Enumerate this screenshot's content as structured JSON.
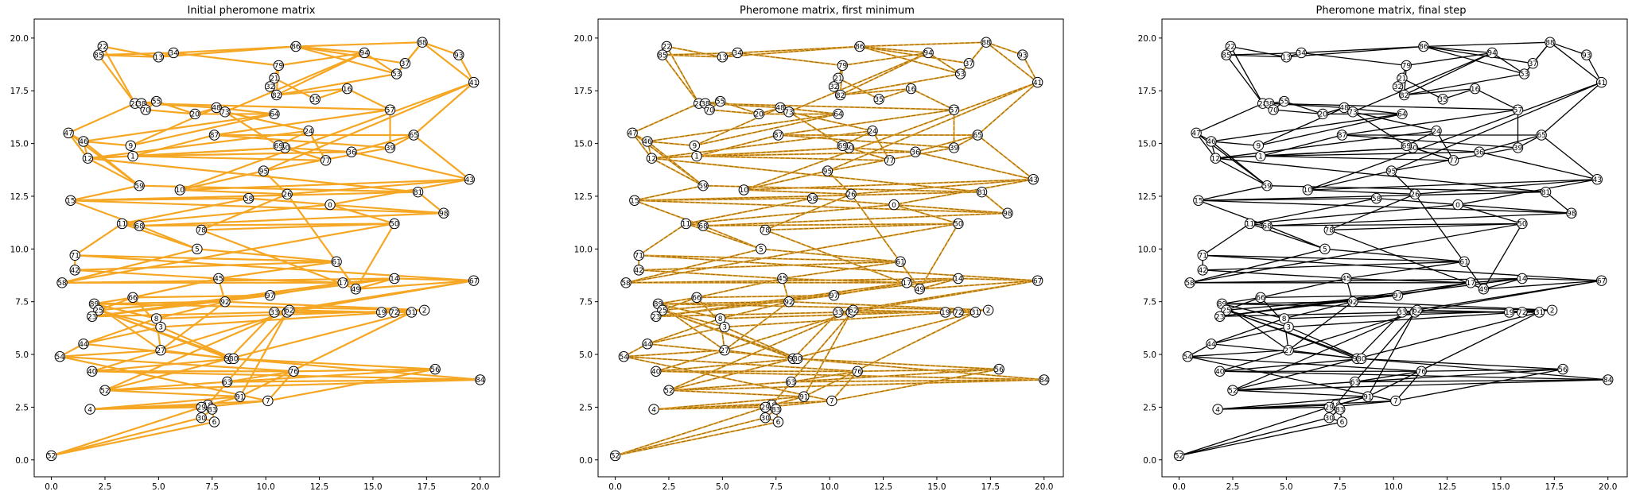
{
  "figure": {
    "panels": [
      {
        "title": "Initial pheromone matrix"
      },
      {
        "title": "Pheromone matrix, first minimum"
      },
      {
        "title": "Pheromone matrix, final step"
      }
    ]
  },
  "chart_data": [
    {
      "type": "network",
      "title": "Initial pheromone matrix",
      "edge_style": "uniform",
      "edge_color": "#f5a623",
      "xlim": [
        -0.8,
        20.9
      ],
      "ylim": [
        -0.8,
        20.9
      ],
      "xticks": [
        "0.0",
        "2.5",
        "5.0",
        "7.5",
        "10.0",
        "12.5",
        "15.0",
        "17.5",
        "20.0"
      ],
      "yticks": [
        "0.0",
        "2.5",
        "5.0",
        "7.5",
        "10.0",
        "12.5",
        "15.0",
        "17.5",
        "20.0"
      ],
      "grid": false
    },
    {
      "type": "network",
      "title": "Pheromone matrix, first minimum",
      "edge_style": "mixed",
      "edge_color": "#8a6a1c",
      "xlim": [
        -0.8,
        20.9
      ],
      "ylim": [
        -0.8,
        20.9
      ],
      "xticks": [
        "0.0",
        "2.5",
        "5.0",
        "7.5",
        "10.0",
        "12.5",
        "15.0",
        "17.5",
        "20.0"
      ],
      "yticks": [
        "0.0",
        "2.5",
        "5.0",
        "7.5",
        "10.0",
        "12.5",
        "15.0",
        "17.5",
        "20.0"
      ],
      "grid": false
    },
    {
      "type": "network",
      "title": "Pheromone matrix, final step",
      "edge_style": "black-with-highlights",
      "edge_color": "#000000",
      "highlight_color": "#f5a623",
      "highlight_edges": [
        [
          1,
          10
        ],
        [
          10,
          78
        ],
        [
          5,
          16
        ],
        [
          16,
          27
        ],
        [
          5,
          45
        ]
      ],
      "xlim": [
        -0.8,
        20.9
      ],
      "ylim": [
        -0.8,
        20.9
      ],
      "xticks": [
        "0.0",
        "2.5",
        "5.0",
        "7.5",
        "10.0",
        "12.5",
        "15.0",
        "17.5",
        "20.0"
      ],
      "yticks": [
        "0.0",
        "2.5",
        "5.0",
        "7.5",
        "10.0",
        "12.5",
        "15.0",
        "17.5",
        "20.0"
      ],
      "grid": false
    }
  ],
  "nodes": [
    {
      "id": 22,
      "x": 2.4,
      "y": 19.6
    },
    {
      "id": 85,
      "x": 2.2,
      "y": 19.2
    },
    {
      "id": 13,
      "x": 5.0,
      "y": 19.1
    },
    {
      "id": 34,
      "x": 5.7,
      "y": 19.3
    },
    {
      "id": 86,
      "x": 11.4,
      "y": 19.6
    },
    {
      "id": 79,
      "x": 10.6,
      "y": 18.7
    },
    {
      "id": 94,
      "x": 14.6,
      "y": 19.3
    },
    {
      "id": 37,
      "x": 16.5,
      "y": 18.8
    },
    {
      "id": 88,
      "x": 17.3,
      "y": 19.8
    },
    {
      "id": 93,
      "x": 19.0,
      "y": 19.2
    },
    {
      "id": 41,
      "x": 19.7,
      "y": 17.9
    },
    {
      "id": 53,
      "x": 16.1,
      "y": 18.3
    },
    {
      "id": 21,
      "x": 10.4,
      "y": 18.1
    },
    {
      "id": 32,
      "x": 10.2,
      "y": 17.7
    },
    {
      "id": 82,
      "x": 10.5,
      "y": 17.3
    },
    {
      "id": 35,
      "x": 12.3,
      "y": 17.1
    },
    {
      "id": 16,
      "x": 13.8,
      "y": 17.6
    },
    {
      "id": 57,
      "x": 15.8,
      "y": 16.6
    },
    {
      "id": 28,
      "x": 3.9,
      "y": 16.9
    },
    {
      "id": 38,
      "x": 4.2,
      "y": 16.9
    },
    {
      "id": 55,
      "x": 4.9,
      "y": 17.0
    },
    {
      "id": 70,
      "x": 4.4,
      "y": 16.6
    },
    {
      "id": 20,
      "x": 6.7,
      "y": 16.4
    },
    {
      "id": 48,
      "x": 7.7,
      "y": 16.7
    },
    {
      "id": 73,
      "x": 8.1,
      "y": 16.5
    },
    {
      "id": 64,
      "x": 10.4,
      "y": 16.4
    },
    {
      "id": 47,
      "x": 0.8,
      "y": 15.5
    },
    {
      "id": 46,
      "x": 1.5,
      "y": 15.1
    },
    {
      "id": 9,
      "x": 3.7,
      "y": 14.9
    },
    {
      "id": 87,
      "x": 7.6,
      "y": 15.4
    },
    {
      "id": 24,
      "x": 12.0,
      "y": 15.6
    },
    {
      "id": 65,
      "x": 16.9,
      "y": 15.4
    },
    {
      "id": 36,
      "x": 14.0,
      "y": 14.6
    },
    {
      "id": 39,
      "x": 15.8,
      "y": 14.8
    },
    {
      "id": 60,
      "x": 10.9,
      "y": 14.8
    },
    {
      "id": 69,
      "x": 10.6,
      "y": 14.9
    },
    {
      "id": 12,
      "x": 1.7,
      "y": 14.3
    },
    {
      "id": 1,
      "x": 3.8,
      "y": 14.4
    },
    {
      "id": 77,
      "x": 12.8,
      "y": 14.2
    },
    {
      "id": 95,
      "x": 9.9,
      "y": 13.7
    },
    {
      "id": 43,
      "x": 19.5,
      "y": 13.3
    },
    {
      "id": 59,
      "x": 4.1,
      "y": 13.0
    },
    {
      "id": 10,
      "x": 6.0,
      "y": 12.8
    },
    {
      "id": 26,
      "x": 11.0,
      "y": 12.6
    },
    {
      "id": 81,
      "x": 17.1,
      "y": 12.7
    },
    {
      "id": 15,
      "x": 0.9,
      "y": 12.3
    },
    {
      "id": 58,
      "x": 9.2,
      "y": 12.4
    },
    {
      "id": 0,
      "x": 13.0,
      "y": 12.1
    },
    {
      "id": 98,
      "x": 18.3,
      "y": 11.7
    },
    {
      "id": 11,
      "x": 3.3,
      "y": 11.2
    },
    {
      "id": 68,
      "x": 4.1,
      "y": 11.1
    },
    {
      "id": 50,
      "x": 16.0,
      "y": 11.2
    },
    {
      "id": 78,
      "x": 7.0,
      "y": 10.9
    },
    {
      "id": 5,
      "x": 6.8,
      "y": 10.0
    },
    {
      "id": 71,
      "x": 1.1,
      "y": 9.7
    },
    {
      "id": 61,
      "x": 13.3,
      "y": 9.4
    },
    {
      "id": 42,
      "x": 1.1,
      "y": 9.0
    },
    {
      "id": 58,
      "x": 0.5,
      "y": 8.4
    },
    {
      "id": 45,
      "x": 7.8,
      "y": 8.6
    },
    {
      "id": 17,
      "x": 13.6,
      "y": 8.4
    },
    {
      "id": 49,
      "x": 14.2,
      "y": 8.1
    },
    {
      "id": 14,
      "x": 16.0,
      "y": 8.6
    },
    {
      "id": 67,
      "x": 19.7,
      "y": 8.5
    },
    {
      "id": 66,
      "x": 3.8,
      "y": 7.7
    },
    {
      "id": 97,
      "x": 10.2,
      "y": 7.8
    },
    {
      "id": 92,
      "x": 8.1,
      "y": 7.5
    },
    {
      "id": 89,
      "x": 2.0,
      "y": 7.4
    },
    {
      "id": 25,
      "x": 2.2,
      "y": 7.1
    },
    {
      "id": 23,
      "x": 1.9,
      "y": 6.8
    },
    {
      "id": 33,
      "x": 10.4,
      "y": 7.0
    },
    {
      "id": 74,
      "x": 11.0,
      "y": 7.0
    },
    {
      "id": 62,
      "x": 11.1,
      "y": 7.1
    },
    {
      "id": 19,
      "x": 15.4,
      "y": 7.0
    },
    {
      "id": 72,
      "x": 16.0,
      "y": 7.0
    },
    {
      "id": 31,
      "x": 16.8,
      "y": 7.0
    },
    {
      "id": 2,
      "x": 17.4,
      "y": 7.1
    },
    {
      "id": 8,
      "x": 4.9,
      "y": 6.7
    },
    {
      "id": 3,
      "x": 5.1,
      "y": 6.3
    },
    {
      "id": 44,
      "x": 1.5,
      "y": 5.5
    },
    {
      "id": 54,
      "x": 0.4,
      "y": 4.9
    },
    {
      "id": 27,
      "x": 5.1,
      "y": 5.2
    },
    {
      "id": 96,
      "x": 8.3,
      "y": 4.8
    },
    {
      "id": 80,
      "x": 8.5,
      "y": 4.8
    },
    {
      "id": 40,
      "x": 1.9,
      "y": 4.2
    },
    {
      "id": 76,
      "x": 11.3,
      "y": 4.2
    },
    {
      "id": 56,
      "x": 17.9,
      "y": 4.3
    },
    {
      "id": 84,
      "x": 20.0,
      "y": 3.8
    },
    {
      "id": 63,
      "x": 8.2,
      "y": 3.7
    },
    {
      "id": 52,
      "x": 2.5,
      "y": 3.3
    },
    {
      "id": 91,
      "x": 8.8,
      "y": 3.0
    },
    {
      "id": 7,
      "x": 10.1,
      "y": 2.8
    },
    {
      "id": 4,
      "x": 1.8,
      "y": 2.4
    },
    {
      "id": 18,
      "x": 7.3,
      "y": 2.6
    },
    {
      "id": 29,
      "x": 7.0,
      "y": 2.5
    },
    {
      "id": 83,
      "x": 7.5,
      "y": 2.4
    },
    {
      "id": 30,
      "x": 7.0,
      "y": 2.0
    },
    {
      "id": 6,
      "x": 7.6,
      "y": 1.8
    },
    {
      "id": 52,
      "x": 0.0,
      "y": 0.2
    }
  ],
  "edges": [
    [
      0,
      1
    ],
    [
      0,
      2
    ],
    [
      1,
      2
    ],
    [
      1,
      3
    ],
    [
      2,
      3
    ],
    [
      2,
      4
    ],
    [
      3,
      4
    ],
    [
      4,
      7
    ],
    [
      4,
      8
    ],
    [
      7,
      8
    ],
    [
      8,
      9
    ],
    [
      9,
      10
    ],
    [
      8,
      10
    ],
    [
      7,
      11
    ],
    [
      8,
      11
    ],
    [
      4,
      11
    ],
    [
      5,
      6
    ],
    [
      4,
      6
    ],
    [
      6,
      11
    ],
    [
      11,
      14
    ],
    [
      6,
      14
    ],
    [
      5,
      14
    ],
    [
      3,
      5
    ],
    [
      5,
      12
    ],
    [
      12,
      13
    ],
    [
      13,
      14
    ],
    [
      12,
      15
    ],
    [
      15,
      16
    ],
    [
      14,
      16
    ],
    [
      16,
      17
    ],
    [
      17,
      29
    ],
    [
      17,
      19
    ],
    [
      17,
      33
    ],
    [
      19,
      23
    ],
    [
      19,
      20
    ],
    [
      20,
      21
    ],
    [
      18,
      21
    ],
    [
      18,
      19
    ],
    [
      1,
      18
    ],
    [
      0,
      18
    ],
    [
      18,
      26
    ],
    [
      19,
      21
    ],
    [
      21,
      22
    ],
    [
      20,
      22
    ],
    [
      22,
      23
    ],
    [
      23,
      25
    ],
    [
      23,
      24
    ],
    [
      6,
      24
    ],
    [
      24,
      30
    ],
    [
      24,
      35
    ],
    [
      30,
      35
    ],
    [
      35,
      38
    ],
    [
      30,
      38
    ],
    [
      30,
      36
    ],
    [
      34,
      36
    ],
    [
      34,
      37
    ],
    [
      37,
      38
    ],
    [
      34,
      38
    ],
    [
      32,
      34
    ],
    [
      32,
      37
    ],
    [
      31,
      32
    ],
    [
      31,
      33
    ],
    [
      33,
      39
    ],
    [
      10,
      31
    ],
    [
      10,
      39
    ],
    [
      10,
      42
    ],
    [
      39,
      42
    ],
    [
      31,
      40
    ],
    [
      32,
      40
    ],
    [
      29,
      31
    ],
    [
      29,
      33
    ],
    [
      29,
      37
    ],
    [
      28,
      37
    ],
    [
      36,
      37
    ],
    [
      26,
      27
    ],
    [
      26,
      36
    ],
    [
      27,
      36
    ],
    [
      27,
      28
    ],
    [
      25,
      27
    ],
    [
      25,
      28
    ],
    [
      22,
      25
    ],
    [
      23,
      28
    ],
    [
      26,
      41
    ],
    [
      27,
      41
    ],
    [
      36,
      41
    ],
    [
      36,
      44
    ],
    [
      41,
      44
    ],
    [
      41,
      45
    ],
    [
      44,
      45
    ],
    [
      44,
      48
    ],
    [
      45,
      48
    ],
    [
      45,
      46
    ],
    [
      46,
      47
    ],
    [
      47,
      48
    ],
    [
      45,
      50
    ],
    [
      48,
      50
    ],
    [
      46,
      49
    ],
    [
      47,
      49
    ],
    [
      49,
      50
    ],
    [
      50,
      53
    ],
    [
      49,
      53
    ],
    [
      49,
      54
    ],
    [
      54,
      55
    ],
    [
      53,
      55
    ],
    [
      53,
      57
    ],
    [
      55,
      56
    ],
    [
      54,
      56
    ],
    [
      56,
      58
    ],
    [
      55,
      58
    ],
    [
      58,
      59
    ],
    [
      57,
      59
    ],
    [
      50,
      51
    ],
    [
      51,
      57
    ],
    [
      51,
      52
    ],
    [
      43,
      52
    ],
    [
      42,
      43
    ],
    [
      39,
      43
    ],
    [
      40,
      43
    ],
    [
      40,
      47
    ],
    [
      42,
      40
    ],
    [
      47,
      51
    ],
    [
      52,
      60
    ],
    [
      43,
      60
    ],
    [
      51,
      60
    ],
    [
      57,
      61
    ],
    [
      60,
      61
    ],
    [
      59,
      61
    ],
    [
      61,
      62
    ],
    [
      60,
      62
    ],
    [
      62,
      69
    ],
    [
      61,
      68
    ],
    [
      68,
      69
    ],
    [
      59,
      68
    ],
    [
      59,
      64
    ],
    [
      64,
      67
    ],
    [
      64,
      68
    ],
    [
      67,
      68
    ],
    [
      63,
      67
    ],
    [
      63,
      64
    ],
    [
      58,
      63
    ],
    [
      58,
      65
    ],
    [
      65,
      66
    ],
    [
      63,
      66
    ],
    [
      66,
      75
    ],
    [
      65,
      75
    ],
    [
      75,
      76
    ],
    [
      75,
      77
    ],
    [
      63,
      77
    ],
    [
      67,
      77
    ],
    [
      67,
      82
    ],
    [
      77,
      82
    ],
    [
      77,
      78
    ],
    [
      76,
      78
    ],
    [
      78,
      82
    ],
    [
      82,
      83
    ],
    [
      67,
      81
    ],
    [
      81,
      82
    ],
    [
      81,
      69
    ],
    [
      69,
      70
    ],
    [
      69,
      72
    ],
    [
      70,
      71
    ],
    [
      71,
      72
    ],
    [
      72,
      73
    ],
    [
      73,
      74
    ],
    [
      72,
      74
    ],
    [
      70,
      83
    ],
    [
      83,
      86
    ],
    [
      82,
      86
    ],
    [
      86,
      87
    ],
    [
      87,
      88
    ],
    [
      86,
      88
    ],
    [
      71,
      88
    ],
    [
      71,
      87
    ],
    [
      74,
      88
    ],
    [
      74,
      89
    ],
    [
      88,
      89
    ],
    [
      89,
      91
    ],
    [
      89,
      92
    ],
    [
      91,
      92
    ],
    [
      83,
      84
    ],
    [
      84,
      85
    ],
    [
      82,
      85
    ],
    [
      85,
      90
    ],
    [
      84,
      90
    ],
    [
      90,
      91
    ],
    [
      90,
      93
    ],
    [
      91,
      93
    ],
    [
      92,
      93
    ],
    [
      93,
      94
    ],
    [
      94,
      95
    ],
    [
      95,
      96
    ],
    [
      94,
      96
    ],
    [
      96,
      97
    ],
    [
      93,
      97
    ],
    [
      97,
      98
    ],
    [
      96,
      98
    ],
    [
      90,
      98
    ],
    [
      79,
      90
    ],
    [
      78,
      79
    ],
    [
      79,
      84
    ],
    [
      79,
      80
    ],
    [
      80,
      81
    ],
    [
      76,
      80
    ],
    [
      65,
      76
    ],
    [
      65,
      80
    ],
    [
      84,
      87
    ],
    [
      85,
      87
    ],
    [
      87,
      92
    ],
    [
      66,
      76
    ],
    [
      54,
      62
    ],
    [
      62,
      70
    ],
    [
      70,
      89
    ],
    [
      89,
      93
    ],
    [
      93,
      95
    ],
    [
      95,
      97
    ],
    [
      98,
      79
    ],
    [
      98,
      80
    ],
    [
      80,
      66
    ]
  ]
}
